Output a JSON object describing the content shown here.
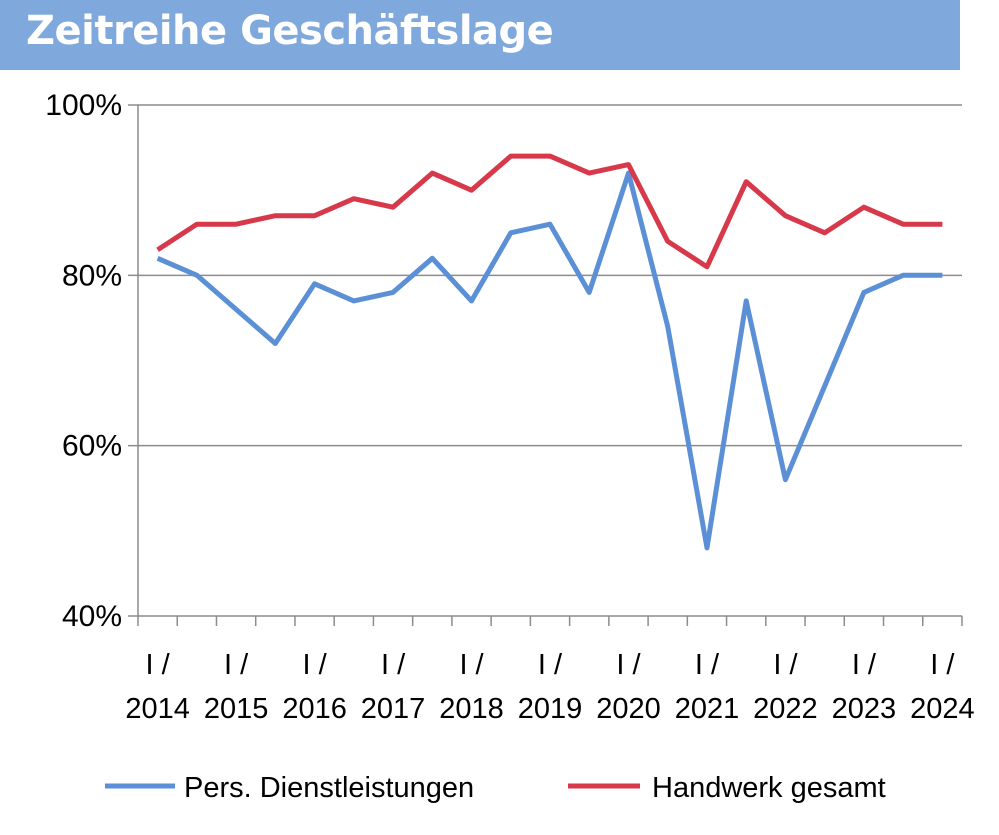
{
  "chart_data": {
    "type": "line",
    "title": "Zeitreihe Geschäftslage",
    "xlabel": "",
    "ylabel": "",
    "ylim": [
      40,
      100
    ],
    "y_ticks": [
      "100%",
      "80%",
      "60%",
      "40%"
    ],
    "y_tick_values": [
      100,
      80,
      60,
      40
    ],
    "grid": true,
    "legend_position": "bottom",
    "x_labels": [
      {
        "top": "I /",
        "bottom": "2014",
        "index": 0
      },
      {
        "top": "I /",
        "bottom": "2015",
        "index": 2
      },
      {
        "top": "I /",
        "bottom": "2016",
        "index": 4
      },
      {
        "top": "I /",
        "bottom": "2017",
        "index": 6
      },
      {
        "top": "I /",
        "bottom": "2018",
        "index": 8
      },
      {
        "top": "I /",
        "bottom": "2019",
        "index": 10
      },
      {
        "top": "I /",
        "bottom": "2020",
        "index": 12
      },
      {
        "top": "I /",
        "bottom": "2021",
        "index": 14
      },
      {
        "top": "I /",
        "bottom": "2022",
        "index": 16
      },
      {
        "top": "I /",
        "bottom": "2023",
        "index": 18
      },
      {
        "top": "I /",
        "bottom": "2024",
        "index": 20
      }
    ],
    "num_points": 21,
    "series": [
      {
        "name": "Pers. Dienstleistungen",
        "color": "#5b8fd6",
        "values": [
          82,
          80,
          76,
          72,
          79,
          77,
          78,
          82,
          77,
          85,
          86,
          78,
          92,
          74,
          48,
          77,
          56,
          67,
          78,
          80,
          80
        ]
      },
      {
        "name": "Handwerk gesamt",
        "color": "#d7394a",
        "values": [
          83,
          86,
          86,
          87,
          87,
          89,
          88,
          92,
          90,
          94,
          94,
          92,
          93,
          84,
          81,
          91,
          87,
          85,
          88,
          86,
          86
        ]
      }
    ]
  }
}
